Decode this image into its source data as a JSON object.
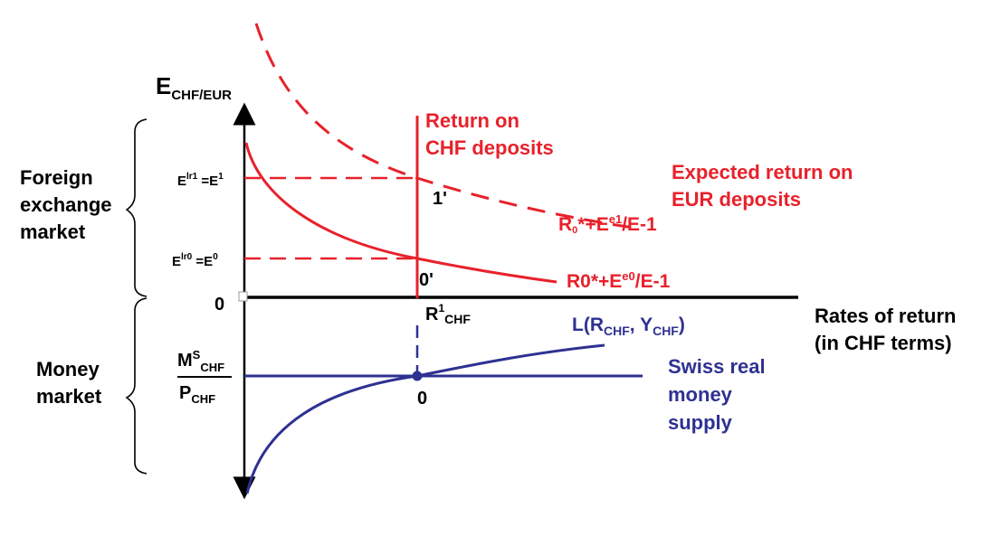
{
  "colors": {
    "red": "#e8212b",
    "blue": "#2e3192",
    "black": "#000000"
  },
  "labels": {
    "y_axis_main": "E",
    "y_axis_sub": "CHF/EUR",
    "x_axis_line1": "Rates of return",
    "x_axis_line2": "(in CHF terms)",
    "fx_market_line1": "Foreign",
    "fx_market_line2": "exchange",
    "fx_market_line3": "market",
    "money_market_line1": "Money",
    "money_market_line2": "market",
    "origin_left": "0",
    "e1_left": "E",
    "e1_sup": "lr1",
    "e1_mid": " =E",
    "e1_sup2": "1",
    "e0_left": "E",
    "e0_sup": "lr0",
    "e0_mid": " =E",
    "e0_sup2": "0",
    "point_1prime": "1'",
    "point_0prime": "0'",
    "r1_main": "R",
    "r1_sup": "1",
    "r1_sub": "CHF",
    "return_chf_line1": "Return on",
    "return_chf_line2": "CHF deposits",
    "expected_eur_line1": "Expected return on",
    "expected_eur_line2": "EUR deposits",
    "curve1_a": "R",
    "curve1_sub": "0",
    "curve1_b": "*+E",
    "curve1_sup": "e1",
    "curve1_c": "/E-1",
    "curve0_a": "R0*+E",
    "curve0_sup": "e0",
    "curve0_c": "/E-1",
    "l_a": "L(R",
    "l_sub1": "CHF",
    "l_b": ", Y",
    "l_sub2": "CHF",
    "l_c": ")",
    "ms_main": "M",
    "ms_sup": "S",
    "ms_sub": "CHF",
    "p_main": "P",
    "p_sub": "CHF",
    "mm_origin": "0",
    "swiss_line1": "Swiss real",
    "swiss_line2": "money",
    "swiss_line3": "supply"
  }
}
